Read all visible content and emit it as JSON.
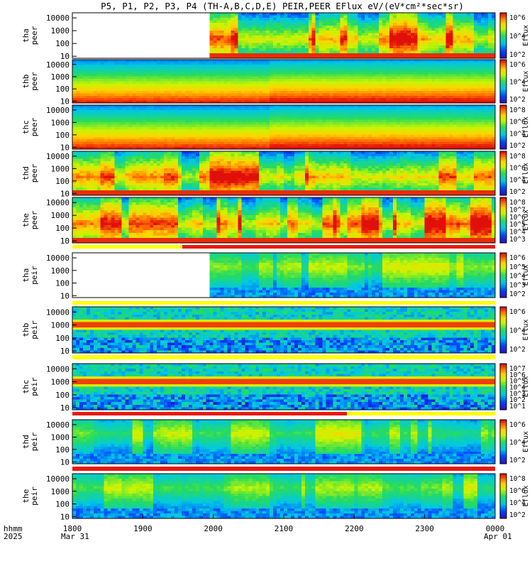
{
  "title": "P5, P1, P2, P3, P4 (TH-A,B,C,D,E) PEIR,PEER EFlux eV/(eV*cm²*sec*sr)",
  "time_axis": {
    "row1_label": "hhmm",
    "row2_label": "2025",
    "ticks": [
      "1800",
      "1900",
      "2000",
      "2100",
      "2200",
      "2300",
      "0000"
    ],
    "date_left": "Mar 31",
    "date_right": "Apr 01"
  },
  "chart_data": [
    {
      "type": "heatmap",
      "probe": "tha",
      "species": "peer",
      "ylabel": [
        "tha",
        "peer"
      ],
      "yticks": [
        "10000",
        "1000",
        "100",
        "10"
      ],
      "colorbar_label": "Eflux",
      "colorbar_ticks": [
        "10^6",
        "10^4",
        "10^2"
      ],
      "data_gap_until": "1958",
      "style": "electron-band"
    },
    {
      "type": "heatmap",
      "probe": "thb",
      "species": "peer",
      "ylabel": [
        "thb",
        "peer"
      ],
      "yticks": [
        "10000",
        "1000",
        "100",
        "10"
      ],
      "colorbar_label": "Eflux",
      "colorbar_ticks": [
        "10^6",
        "10^4",
        "10^2"
      ],
      "style": "smooth-layers"
    },
    {
      "type": "heatmap",
      "probe": "thc",
      "species": "peer",
      "ylabel": [
        "thc",
        "peer"
      ],
      "yticks": [
        "10000",
        "1000",
        "100",
        "10"
      ],
      "colorbar_label": "Eflux",
      "colorbar_ticks": [
        "10^8",
        "10^6",
        "10^4",
        "10^2"
      ],
      "style": "smooth-layers"
    },
    {
      "type": "heatmap",
      "probe": "thd",
      "species": "peer",
      "ylabel": [
        "thd",
        "peer"
      ],
      "yticks": [
        "10000",
        "1000",
        "100",
        "10"
      ],
      "colorbar_label": "Eflux",
      "colorbar_ticks": [
        "10^8",
        "10^6",
        "10^4",
        "10^2"
      ],
      "style": "electron-band"
    },
    {
      "type": "heatmap",
      "probe": "the",
      "species": "peer",
      "ylabel": [
        "the",
        "peer"
      ],
      "yticks": [
        "10000",
        "1000",
        "100",
        "10"
      ],
      "colorbar_label": "Eflux",
      "colorbar_ticks": [
        "10^8",
        "10^7",
        "10^6",
        "10^5",
        "10^4",
        "10^3"
      ],
      "style": "electron-band"
    },
    {
      "type": "heatmap",
      "probe": "tha",
      "species": "peir",
      "ylabel": [
        "tha",
        "peir"
      ],
      "yticks": [
        "10000",
        "1000",
        "100",
        "10"
      ],
      "colorbar_label": "Eflux",
      "colorbar_ticks": [
        "10^6",
        "10^5",
        "10^4",
        "10^3",
        "10^2"
      ],
      "data_gap_until": "1958",
      "style": "ion-broad"
    },
    {
      "type": "heatmap",
      "probe": "thb",
      "species": "peir",
      "ylabel": [
        "thb",
        "peir"
      ],
      "yticks": [
        "10000",
        "1000",
        "100",
        "10"
      ],
      "colorbar_label": "Eflux",
      "colorbar_ticks": [
        "10^6",
        "10^4",
        "10^2"
      ],
      "style": "ion-line"
    },
    {
      "type": "heatmap",
      "probe": "thc",
      "species": "peir",
      "ylabel": [
        "thc",
        "peir"
      ],
      "yticks": [
        "10000",
        "1000",
        "100",
        "10"
      ],
      "colorbar_label": "Eflux",
      "colorbar_ticks": [
        "10^7",
        "10^6",
        "10^5",
        "10^4",
        "10^3",
        "10^2",
        "10^1"
      ],
      "style": "ion-line"
    },
    {
      "type": "heatmap",
      "probe": "thd",
      "species": "peir",
      "ylabel": [
        "thd",
        "peir"
      ],
      "yticks": [
        "10000",
        "1000",
        "100",
        "10"
      ],
      "colorbar_label": "Eflux",
      "colorbar_ticks": [
        "10^6",
        "10^4",
        "10^2"
      ],
      "style": "ion-broad"
    },
    {
      "type": "heatmap",
      "probe": "the",
      "species": "peir",
      "ylabel": [
        "the",
        "peir"
      ],
      "yticks": [
        "10000",
        "1000",
        "100",
        "10"
      ],
      "colorbar_label": "Eflux",
      "colorbar_ticks": [
        "10^8",
        "10^6",
        "10^4",
        "10^2"
      ],
      "style": "ion-broad"
    }
  ],
  "colors": {
    "red": "#e81a10",
    "yellow": "#ffff00",
    "black": "#000000"
  }
}
